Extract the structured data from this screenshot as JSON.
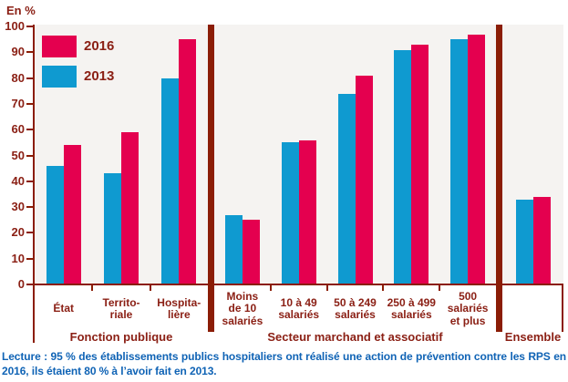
{
  "chart_data": {
    "type": "bar",
    "title": "",
    "xlabel": "",
    "ylabel": "En %",
    "unit_label": "En %",
    "ylim": [
      0,
      100
    ],
    "ytick_step": 10,
    "grid": false,
    "legend_position": "top-left",
    "pair_order": [
      "2013",
      "2016"
    ],
    "categories": [
      "État",
      "Territoriale",
      "Hospitalière",
      "Moins de 10 salariés",
      "10 à 49 salariés",
      "50 à 249 salariés",
      "250 à 499 salariés",
      "500 salariés et plus",
      "Ensemble"
    ],
    "category_label_lines": [
      [
        "État"
      ],
      [
        "Territo-",
        "riale"
      ],
      [
        "Hospita-",
        "lière"
      ],
      [
        "Moins",
        "de 10",
        "salariés"
      ],
      [
        "10 à 49",
        "salariés"
      ],
      [
        "50 à 249",
        "salariés"
      ],
      [
        "250 à 499",
        "salariés"
      ],
      [
        "500",
        "salariés",
        "et plus"
      ],
      []
    ],
    "series": [
      {
        "name": "2016",
        "color": "#e4004f",
        "values": [
          54,
          59,
          95,
          25,
          56,
          81,
          93,
          97,
          34
        ]
      },
      {
        "name": "2013",
        "color": "#0f9ad0",
        "values": [
          46,
          43,
          80,
          27,
          55,
          74,
          91,
          95,
          33
        ]
      }
    ],
    "groups": [
      {
        "label": "Fonction publique",
        "category_indices": [
          0,
          1,
          2
        ]
      },
      {
        "label": "Secteur marchand et associatif",
        "category_indices": [
          3,
          4,
          5,
          6,
          7
        ]
      },
      {
        "label": "Ensemble",
        "category_indices": [
          8
        ]
      }
    ]
  },
  "colors": {
    "series_2016": "#e4004f",
    "series_2013": "#0f9ad0",
    "axis": "#8b1d06",
    "text_dark_red": "#8b2015",
    "plot_background": "#f5f3f1",
    "note_blue": "#0f63b5"
  },
  "footer": {
    "text": "Lecture : 95 % des établissements publics hospitaliers ont réalisé une action de prévention contre les RPS en 2016, ils étaient 80 % à l’avoir fait en 2013."
  }
}
